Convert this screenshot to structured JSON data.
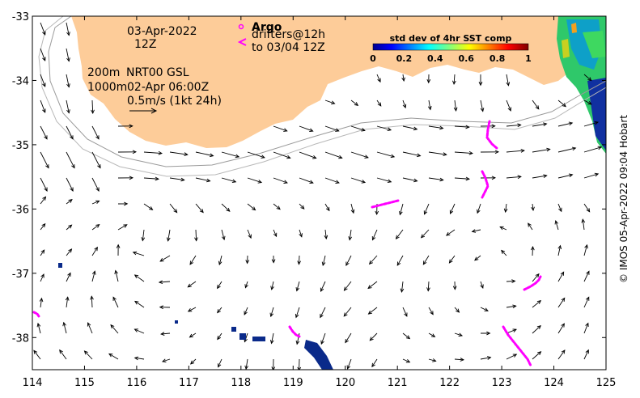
{
  "map": {
    "date_label": "03-Apr-2022",
    "hour_label": "12Z",
    "isobath_labels": [
      "200m",
      "1000m"
    ],
    "product_label": "NRT00 GSL",
    "product_time": "02-Apr 06:00Z",
    "vector_scale_label": "0.5m/s (1kt 24h)",
    "argo_label": "Argo",
    "drifters_label_1": "drifters@12h",
    "drifters_label_2": "to 03/04 12Z",
    "x_ticks": [
      "114",
      "115",
      "116",
      "117",
      "118",
      "119",
      "120",
      "121",
      "122",
      "123",
      "124",
      "125"
    ],
    "y_ticks": [
      "-33",
      "-34",
      "-35",
      "-36",
      "-37",
      "-38"
    ],
    "x_range": [
      114,
      125
    ],
    "y_range": [
      -38.5,
      -33
    ],
    "side_credit": "© IMOS 05-Apr-2022 09:04 Hobart",
    "land_color": "#fdcc99",
    "drifter_color": "#ff00ff",
    "colorbar": {
      "title": "std dev of 4hr SST comp",
      "ticks": [
        "0",
        "0.2",
        "0.4",
        "0.6",
        "0.8",
        "1"
      ]
    }
  }
}
